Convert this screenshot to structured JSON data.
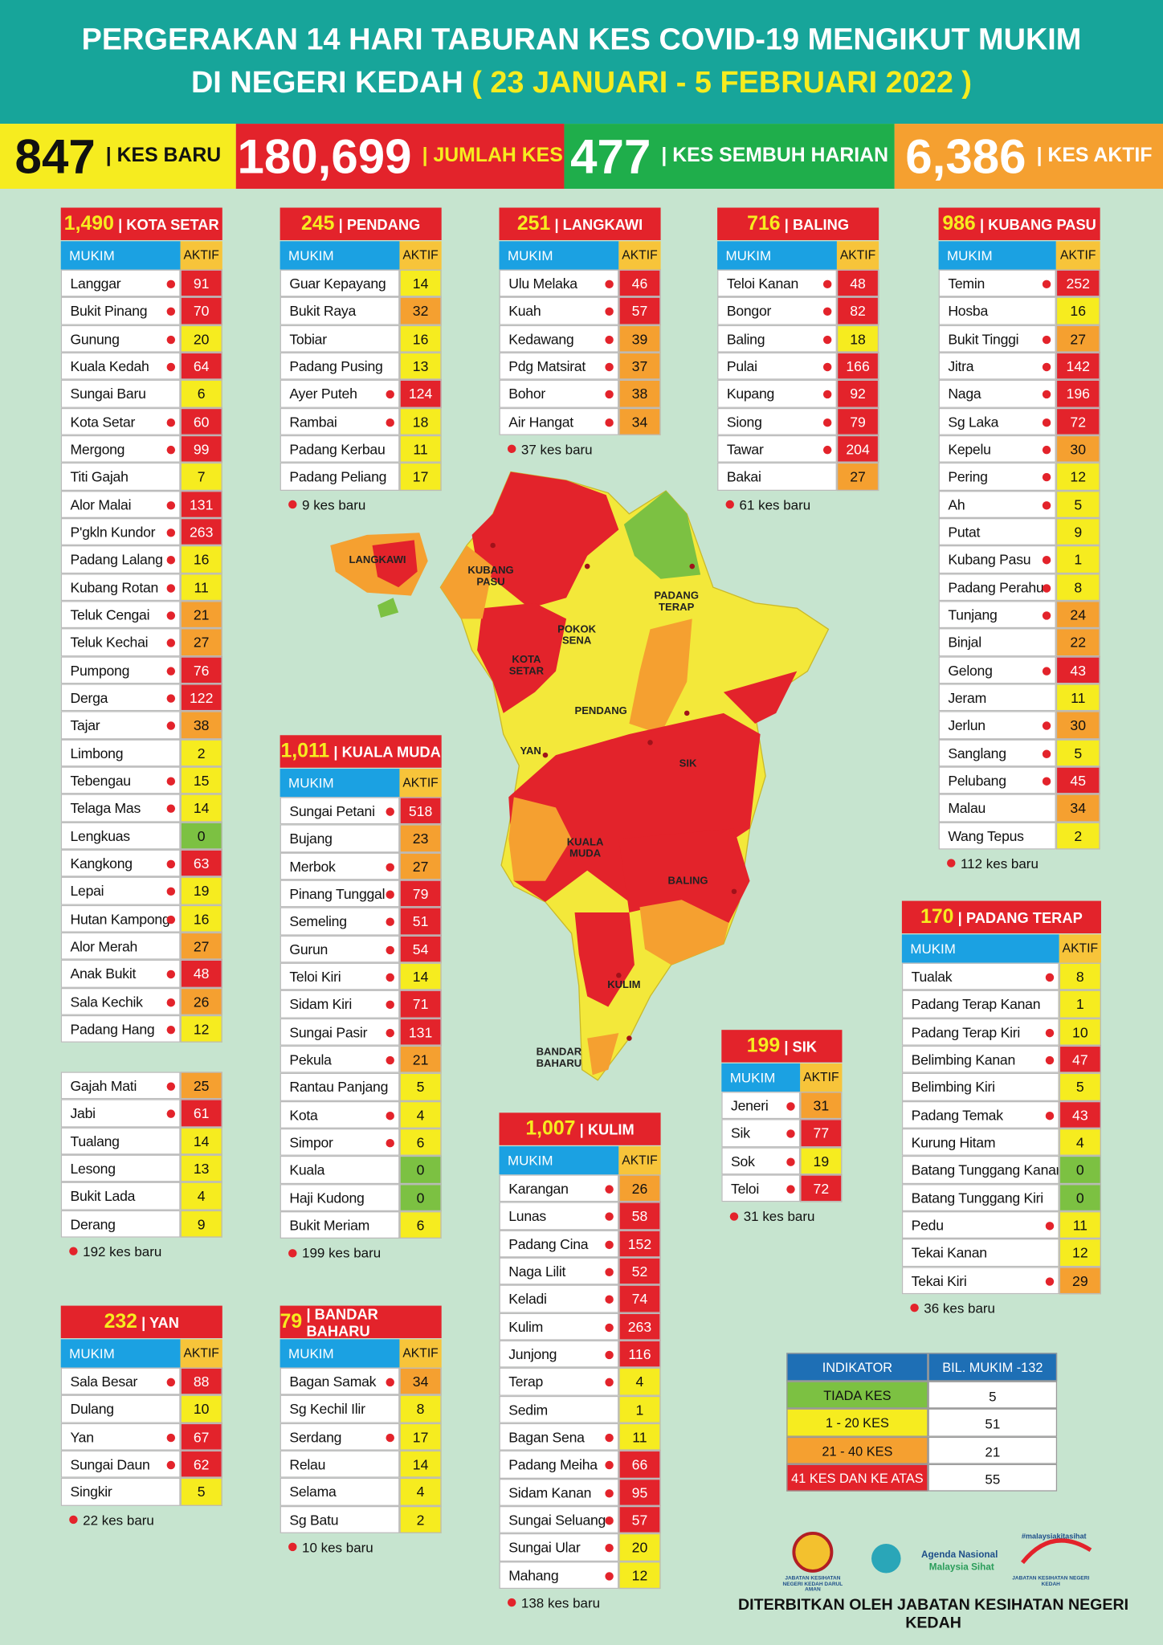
{
  "header": {
    "title_line1": "PERGERAKAN 14 HARI TABURAN KES COVID-19 MENGIKUT MUKIM",
    "title_line2": "DI NEGERI KEDAH",
    "date_range": "( 23 JANUARI - 5 FEBRUARI 2022 )"
  },
  "stats": [
    {
      "value": "847",
      "label": "| KES BARU"
    },
    {
      "value": "180,699",
      "label": "| JUMLAH KES"
    },
    {
      "value": "477",
      "label": "| KES SEMBUH HARIAN"
    },
    {
      "value": "6,386",
      "label": "| KES AKTIF"
    }
  ],
  "table_headers": {
    "name": "MUKIM",
    "value": "AKTIF"
  },
  "districts": [
    {
      "total": "1,490",
      "name": "| KOTA SETAR",
      "rows": [
        {
          "name": "Langgar",
          "active": 91,
          "new": true
        },
        {
          "name": "Bukit Pinang",
          "active": 70,
          "new": true
        },
        {
          "name": "Gunung",
          "active": 20,
          "new": true
        },
        {
          "name": "Kuala Kedah",
          "active": 64,
          "new": true
        },
        {
          "name": "Sungai Baru",
          "active": 6,
          "new": false
        },
        {
          "name": "Kota Setar",
          "active": 60,
          "new": true
        },
        {
          "name": "Mergong",
          "active": 99,
          "new": true
        },
        {
          "name": "Titi Gajah",
          "active": 7,
          "new": false
        },
        {
          "name": "Alor Malai",
          "active": 131,
          "new": true
        },
        {
          "name": "P'gkln Kundor",
          "active": 263,
          "new": true
        },
        {
          "name": "Padang Lalang",
          "active": 16,
          "new": true
        },
        {
          "name": "Kubang Rotan",
          "active": 11,
          "new": true
        },
        {
          "name": "Teluk Cengai",
          "active": 21,
          "new": true
        },
        {
          "name": "Teluk Kechai",
          "active": 27,
          "new": true
        },
        {
          "name": "Pumpong",
          "active": 76,
          "new": true
        },
        {
          "name": "Derga",
          "active": 122,
          "new": true
        },
        {
          "name": "Tajar",
          "active": 38,
          "new": true
        },
        {
          "name": "Limbong",
          "active": 2,
          "new": false
        },
        {
          "name": "Tebengau",
          "active": 15,
          "new": true
        },
        {
          "name": "Telaga Mas",
          "active": 14,
          "new": true
        },
        {
          "name": "Lengkuas",
          "active": 0,
          "new": false
        },
        {
          "name": "Kangkong",
          "active": 63,
          "new": true
        },
        {
          "name": "Lepai",
          "active": 19,
          "new": true
        },
        {
          "name": "Hutan Kampong",
          "active": 16,
          "new": true
        },
        {
          "name": "Alor Merah",
          "active": 27,
          "new": false
        },
        {
          "name": "Anak Bukit",
          "active": 48,
          "new": true
        },
        {
          "name": "Sala Kechik",
          "active": 26,
          "new": true
        },
        {
          "name": "Padang Hang",
          "active": 12,
          "new": true
        }
      ],
      "extra_rows": [
        {
          "name": "Gajah Mati",
          "active": 25,
          "new": true
        },
        {
          "name": "Jabi",
          "active": 61,
          "new": true
        },
        {
          "name": "Tualang",
          "active": 14,
          "new": false
        },
        {
          "name": "Lesong",
          "active": 13,
          "new": false
        },
        {
          "name": "Bukit Lada",
          "active": 4,
          "new": false
        },
        {
          "name": "Derang",
          "active": 9,
          "new": false
        }
      ],
      "note": "192 kes baru"
    },
    {
      "total": "245",
      "name": "| PENDANG",
      "rows": [
        {
          "name": "Guar Kepayang",
          "active": 14,
          "new": false
        },
        {
          "name": "Bukit Raya",
          "active": 32,
          "new": false
        },
        {
          "name": "Tobiar",
          "active": 16,
          "new": false
        },
        {
          "name": "Padang Pusing",
          "active": 13,
          "new": false
        },
        {
          "name": "Ayer Puteh",
          "active": 124,
          "new": true
        },
        {
          "name": "Rambai",
          "active": 18,
          "new": true
        },
        {
          "name": "Padang Kerbau",
          "active": 11,
          "new": false
        },
        {
          "name": "Padang Peliang",
          "active": 17,
          "new": false
        }
      ],
      "note": "9 kes baru"
    },
    {
      "total": "251",
      "name": "| LANGKAWI",
      "rows": [
        {
          "name": "Ulu Melaka",
          "active": 46,
          "new": true
        },
        {
          "name": "Kuah",
          "active": 57,
          "new": true
        },
        {
          "name": "Kedawang",
          "active": 39,
          "new": true
        },
        {
          "name": "Pdg Matsirat",
          "active": 37,
          "new": true
        },
        {
          "name": "Bohor",
          "active": 38,
          "new": true
        },
        {
          "name": "Air Hangat",
          "active": 34,
          "new": true
        }
      ],
      "note": "37 kes baru"
    },
    {
      "total": "716",
      "name": "| BALING",
      "rows": [
        {
          "name": "Teloi Kanan",
          "active": 48,
          "new": true
        },
        {
          "name": "Bongor",
          "active": 82,
          "new": true
        },
        {
          "name": "Baling",
          "active": 18,
          "new": true
        },
        {
          "name": "Pulai",
          "active": 166,
          "new": true
        },
        {
          "name": "Kupang",
          "active": 92,
          "new": true
        },
        {
          "name": "Siong",
          "active": 79,
          "new": true
        },
        {
          "name": "Tawar",
          "active": 204,
          "new": true
        },
        {
          "name": "Bakai",
          "active": 27,
          "new": false
        }
      ],
      "note": "61 kes baru"
    },
    {
      "total": "986",
      "name": "| KUBANG PASU",
      "rows": [
        {
          "name": "Temin",
          "active": 252,
          "new": true
        },
        {
          "name": "Hosba",
          "active": 16,
          "new": false
        },
        {
          "name": "Bukit Tinggi",
          "active": 27,
          "new": true
        },
        {
          "name": "Jitra",
          "active": 142,
          "new": true
        },
        {
          "name": "Naga",
          "active": 196,
          "new": true
        },
        {
          "name": "Sg Laka",
          "active": 72,
          "new": true
        },
        {
          "name": "Kepelu",
          "active": 30,
          "new": true
        },
        {
          "name": "Pering",
          "active": 12,
          "new": true
        },
        {
          "name": "Ah",
          "active": 5,
          "new": true
        },
        {
          "name": "Putat",
          "active": 9,
          "new": false
        },
        {
          "name": "Kubang Pasu",
          "active": 1,
          "new": true
        },
        {
          "name": "Padang Perahu",
          "active": 8,
          "new": true
        },
        {
          "name": "Tunjang",
          "active": 24,
          "new": true
        },
        {
          "name": "Binjal",
          "active": 22,
          "new": false
        },
        {
          "name": "Gelong",
          "active": 43,
          "new": true
        },
        {
          "name": "Jeram",
          "active": 11,
          "new": false
        },
        {
          "name": "Jerlun",
          "active": 30,
          "new": true
        },
        {
          "name": "Sanglang",
          "active": 5,
          "new": true
        },
        {
          "name": "Pelubang",
          "active": 45,
          "new": true
        },
        {
          "name": "Malau",
          "active": 34,
          "new": false
        },
        {
          "name": "Wang Tepus",
          "active": 2,
          "new": false
        }
      ],
      "note": "112 kes baru"
    },
    {
      "total": "1,011",
      "name": "| KUALA MUDA",
      "rows": [
        {
          "name": "Sungai Petani",
          "active": 518,
          "new": true
        },
        {
          "name": "Bujang",
          "active": 23,
          "new": false
        },
        {
          "name": "Merbok",
          "active": 27,
          "new": true
        },
        {
          "name": "Pinang Tunggal",
          "active": 79,
          "new": true
        },
        {
          "name": "Semeling",
          "active": 51,
          "new": true
        },
        {
          "name": "Gurun",
          "active": 54,
          "new": true
        },
        {
          "name": "Teloi Kiri",
          "active": 14,
          "new": true
        },
        {
          "name": "Sidam Kiri",
          "active": 71,
          "new": true
        },
        {
          "name": "Sungai Pasir",
          "active": 131,
          "new": true
        },
        {
          "name": "Pekula",
          "active": 21,
          "new": true
        },
        {
          "name": "Rantau Panjang",
          "active": 5,
          "new": false
        },
        {
          "name": "Kota",
          "active": 4,
          "new": true
        },
        {
          "name": "Simpor",
          "active": 6,
          "new": true
        },
        {
          "name": "Kuala",
          "active": 0,
          "new": false
        },
        {
          "name": "Haji Kudong",
          "active": 0,
          "new": false
        },
        {
          "name": "Bukit Meriam",
          "active": 6,
          "new": false
        }
      ],
      "note": "199 kes baru"
    },
    {
      "total": "170",
      "name": "| PADANG TERAP",
      "rows": [
        {
          "name": "Tualak",
          "active": 8,
          "new": true
        },
        {
          "name": "Padang Terap Kanan",
          "active": 1,
          "new": false
        },
        {
          "name": "Padang Terap Kiri",
          "active": 10,
          "new": true
        },
        {
          "name": "Belimbing Kanan",
          "active": 47,
          "new": true
        },
        {
          "name": "Belimbing Kiri",
          "active": 5,
          "new": false
        },
        {
          "name": "Padang Temak",
          "active": 43,
          "new": true
        },
        {
          "name": "Kurung Hitam",
          "active": 4,
          "new": false
        },
        {
          "name": "Batang Tunggang Kanan",
          "active": 0,
          "new": false
        },
        {
          "name": "Batang Tunggang Kiri",
          "active": 0,
          "new": false
        },
        {
          "name": "Pedu",
          "active": 11,
          "new": true
        },
        {
          "name": "Tekai Kanan",
          "active": 12,
          "new": false
        },
        {
          "name": "Tekai Kiri",
          "active": 29,
          "new": true
        }
      ],
      "note": "36 kes baru"
    },
    {
      "total": "199",
      "name": "| SIK",
      "rows": [
        {
          "name": "Jeneri",
          "active": 31,
          "new": true
        },
        {
          "name": "Sik",
          "active": 77,
          "new": true
        },
        {
          "name": "Sok",
          "active": 19,
          "new": true
        },
        {
          "name": "Teloi",
          "active": 72,
          "new": true
        }
      ],
      "note": "31 kes baru"
    },
    {
      "total": "1,007",
      "name": "| KULIM",
      "rows": [
        {
          "name": "Karangan",
          "active": 26,
          "new": true
        },
        {
          "name": "Lunas",
          "active": 58,
          "new": true
        },
        {
          "name": "Padang Cina",
          "active": 152,
          "new": true
        },
        {
          "name": "Naga Lilit",
          "active": 52,
          "new": true
        },
        {
          "name": "Keladi",
          "active": 74,
          "new": true
        },
        {
          "name": "Kulim",
          "active": 263,
          "new": true
        },
        {
          "name": "Junjong",
          "active": 116,
          "new": true
        },
        {
          "name": "Terap",
          "active": 4,
          "new": true
        },
        {
          "name": "Sedim",
          "active": 1,
          "new": false
        },
        {
          "name": "Bagan Sena",
          "active": 11,
          "new": true
        },
        {
          "name": "Padang Meiha",
          "active": 66,
          "new": true
        },
        {
          "name": "Sidam Kanan",
          "active": 95,
          "new": true
        },
        {
          "name": "Sungai Seluang",
          "active": 57,
          "new": true
        },
        {
          "name": "Sungai Ular",
          "active": 20,
          "new": true
        },
        {
          "name": "Mahang",
          "active": 12,
          "new": true
        }
      ],
      "note": "138 kes baru"
    },
    {
      "total": "232",
      "name": "| YAN",
      "rows": [
        {
          "name": "Sala Besar",
          "active": 88,
          "new": true
        },
        {
          "name": "Dulang",
          "active": 10,
          "new": false
        },
        {
          "name": "Yan",
          "active": 67,
          "new": true
        },
        {
          "name": "Sungai Daun",
          "active": 62,
          "new": true
        },
        {
          "name": "Singkir",
          "active": 5,
          "new": false
        }
      ],
      "note": "22 kes baru"
    },
    {
      "total": "79",
      "name": "| BANDAR BAHARU",
      "rows": [
        {
          "name": "Bagan Samak",
          "active": 34,
          "new": true
        },
        {
          "name": "Sg Kechil Ilir",
          "active": 8,
          "new": false
        },
        {
          "name": "Serdang",
          "active": 17,
          "new": true
        },
        {
          "name": "Relau",
          "active": 14,
          "new": false
        },
        {
          "name": "Selama",
          "active": 4,
          "new": false
        },
        {
          "name": "Sg Batu",
          "active": 2,
          "new": false
        }
      ],
      "note": "10 kes baru"
    }
  ],
  "map": {
    "labels": [
      "LANGKAWI",
      "KUBANG PASU",
      "PADANG TERAP",
      "POKOK SENA",
      "KOTA SETAR",
      "PENDANG",
      "YAN",
      "SIK",
      "KUALA MUDA",
      "BALING",
      "KULIM",
      "BANDAR BAHARU"
    ]
  },
  "legend": {
    "headers": [
      "INDIKATOR",
      "BIL. MUKIM -132"
    ],
    "rows": [
      {
        "label": "TIADA KES",
        "count": 5,
        "color": "#7cc142",
        "max": 0
      },
      {
        "label": "1 - 20 KES",
        "count": 51,
        "color": "#f6ec1f",
        "max": 20
      },
      {
        "label": "21 - 40 KES",
        "count": 21,
        "color": "#f5a030",
        "max": 40
      },
      {
        "label": "41 KES DAN KE ATAS",
        "count": 55,
        "color": "#e3232b",
        "max": null
      }
    ]
  },
  "footer": {
    "logos": [
      "JABATAN KESIHATAN NEGERI KEDAH DARUL AMAN",
      "Agenda Nasional",
      "Malaysia Sihat",
      "#malaysiakitasihat",
      "JABATAN KESIHATAN NEGERI KEDAH"
    ],
    "publisher": "DITERBITKAN OLEH JABATAN KESIHATAN NEGERI KEDAH"
  }
}
